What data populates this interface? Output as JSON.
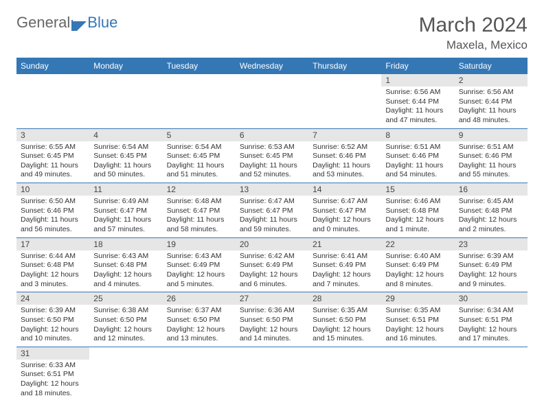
{
  "logo": {
    "text1": "General",
    "text2": "Blue"
  },
  "title": "March 2024",
  "location": "Maxela, Mexico",
  "dayHeaders": [
    "Sunday",
    "Monday",
    "Tuesday",
    "Wednesday",
    "Thursday",
    "Friday",
    "Saturday"
  ],
  "colors": {
    "header_bg": "#3477b5",
    "header_fg": "#ffffff",
    "row_divider": "#3477b5",
    "daynum_bg": "#e6e6e6",
    "text": "#333333",
    "title": "#555555"
  },
  "weeks": [
    [
      {
        "n": "",
        "sr": "",
        "ss": "",
        "dl": ""
      },
      {
        "n": "",
        "sr": "",
        "ss": "",
        "dl": ""
      },
      {
        "n": "",
        "sr": "",
        "ss": "",
        "dl": ""
      },
      {
        "n": "",
        "sr": "",
        "ss": "",
        "dl": ""
      },
      {
        "n": "",
        "sr": "",
        "ss": "",
        "dl": ""
      },
      {
        "n": "1",
        "sr": "Sunrise: 6:56 AM",
        "ss": "Sunset: 6:44 PM",
        "dl": "Daylight: 11 hours and 47 minutes."
      },
      {
        "n": "2",
        "sr": "Sunrise: 6:56 AM",
        "ss": "Sunset: 6:44 PM",
        "dl": "Daylight: 11 hours and 48 minutes."
      }
    ],
    [
      {
        "n": "3",
        "sr": "Sunrise: 6:55 AM",
        "ss": "Sunset: 6:45 PM",
        "dl": "Daylight: 11 hours and 49 minutes."
      },
      {
        "n": "4",
        "sr": "Sunrise: 6:54 AM",
        "ss": "Sunset: 6:45 PM",
        "dl": "Daylight: 11 hours and 50 minutes."
      },
      {
        "n": "5",
        "sr": "Sunrise: 6:54 AM",
        "ss": "Sunset: 6:45 PM",
        "dl": "Daylight: 11 hours and 51 minutes."
      },
      {
        "n": "6",
        "sr": "Sunrise: 6:53 AM",
        "ss": "Sunset: 6:45 PM",
        "dl": "Daylight: 11 hours and 52 minutes."
      },
      {
        "n": "7",
        "sr": "Sunrise: 6:52 AM",
        "ss": "Sunset: 6:46 PM",
        "dl": "Daylight: 11 hours and 53 minutes."
      },
      {
        "n": "8",
        "sr": "Sunrise: 6:51 AM",
        "ss": "Sunset: 6:46 PM",
        "dl": "Daylight: 11 hours and 54 minutes."
      },
      {
        "n": "9",
        "sr": "Sunrise: 6:51 AM",
        "ss": "Sunset: 6:46 PM",
        "dl": "Daylight: 11 hours and 55 minutes."
      }
    ],
    [
      {
        "n": "10",
        "sr": "Sunrise: 6:50 AM",
        "ss": "Sunset: 6:46 PM",
        "dl": "Daylight: 11 hours and 56 minutes."
      },
      {
        "n": "11",
        "sr": "Sunrise: 6:49 AM",
        "ss": "Sunset: 6:47 PM",
        "dl": "Daylight: 11 hours and 57 minutes."
      },
      {
        "n": "12",
        "sr": "Sunrise: 6:48 AM",
        "ss": "Sunset: 6:47 PM",
        "dl": "Daylight: 11 hours and 58 minutes."
      },
      {
        "n": "13",
        "sr": "Sunrise: 6:47 AM",
        "ss": "Sunset: 6:47 PM",
        "dl": "Daylight: 11 hours and 59 minutes."
      },
      {
        "n": "14",
        "sr": "Sunrise: 6:47 AM",
        "ss": "Sunset: 6:47 PM",
        "dl": "Daylight: 12 hours and 0 minutes."
      },
      {
        "n": "15",
        "sr": "Sunrise: 6:46 AM",
        "ss": "Sunset: 6:48 PM",
        "dl": "Daylight: 12 hours and 1 minute."
      },
      {
        "n": "16",
        "sr": "Sunrise: 6:45 AM",
        "ss": "Sunset: 6:48 PM",
        "dl": "Daylight: 12 hours and 2 minutes."
      }
    ],
    [
      {
        "n": "17",
        "sr": "Sunrise: 6:44 AM",
        "ss": "Sunset: 6:48 PM",
        "dl": "Daylight: 12 hours and 3 minutes."
      },
      {
        "n": "18",
        "sr": "Sunrise: 6:43 AM",
        "ss": "Sunset: 6:48 PM",
        "dl": "Daylight: 12 hours and 4 minutes."
      },
      {
        "n": "19",
        "sr": "Sunrise: 6:43 AM",
        "ss": "Sunset: 6:49 PM",
        "dl": "Daylight: 12 hours and 5 minutes."
      },
      {
        "n": "20",
        "sr": "Sunrise: 6:42 AM",
        "ss": "Sunset: 6:49 PM",
        "dl": "Daylight: 12 hours and 6 minutes."
      },
      {
        "n": "21",
        "sr": "Sunrise: 6:41 AM",
        "ss": "Sunset: 6:49 PM",
        "dl": "Daylight: 12 hours and 7 minutes."
      },
      {
        "n": "22",
        "sr": "Sunrise: 6:40 AM",
        "ss": "Sunset: 6:49 PM",
        "dl": "Daylight: 12 hours and 8 minutes."
      },
      {
        "n": "23",
        "sr": "Sunrise: 6:39 AM",
        "ss": "Sunset: 6:49 PM",
        "dl": "Daylight: 12 hours and 9 minutes."
      }
    ],
    [
      {
        "n": "24",
        "sr": "Sunrise: 6:39 AM",
        "ss": "Sunset: 6:50 PM",
        "dl": "Daylight: 12 hours and 10 minutes."
      },
      {
        "n": "25",
        "sr": "Sunrise: 6:38 AM",
        "ss": "Sunset: 6:50 PM",
        "dl": "Daylight: 12 hours and 12 minutes."
      },
      {
        "n": "26",
        "sr": "Sunrise: 6:37 AM",
        "ss": "Sunset: 6:50 PM",
        "dl": "Daylight: 12 hours and 13 minutes."
      },
      {
        "n": "27",
        "sr": "Sunrise: 6:36 AM",
        "ss": "Sunset: 6:50 PM",
        "dl": "Daylight: 12 hours and 14 minutes."
      },
      {
        "n": "28",
        "sr": "Sunrise: 6:35 AM",
        "ss": "Sunset: 6:50 PM",
        "dl": "Daylight: 12 hours and 15 minutes."
      },
      {
        "n": "29",
        "sr": "Sunrise: 6:35 AM",
        "ss": "Sunset: 6:51 PM",
        "dl": "Daylight: 12 hours and 16 minutes."
      },
      {
        "n": "30",
        "sr": "Sunrise: 6:34 AM",
        "ss": "Sunset: 6:51 PM",
        "dl": "Daylight: 12 hours and 17 minutes."
      }
    ],
    [
      {
        "n": "31",
        "sr": "Sunrise: 6:33 AM",
        "ss": "Sunset: 6:51 PM",
        "dl": "Daylight: 12 hours and 18 minutes."
      },
      {
        "n": "",
        "sr": "",
        "ss": "",
        "dl": ""
      },
      {
        "n": "",
        "sr": "",
        "ss": "",
        "dl": ""
      },
      {
        "n": "",
        "sr": "",
        "ss": "",
        "dl": ""
      },
      {
        "n": "",
        "sr": "",
        "ss": "",
        "dl": ""
      },
      {
        "n": "",
        "sr": "",
        "ss": "",
        "dl": ""
      },
      {
        "n": "",
        "sr": "",
        "ss": "",
        "dl": ""
      }
    ]
  ]
}
